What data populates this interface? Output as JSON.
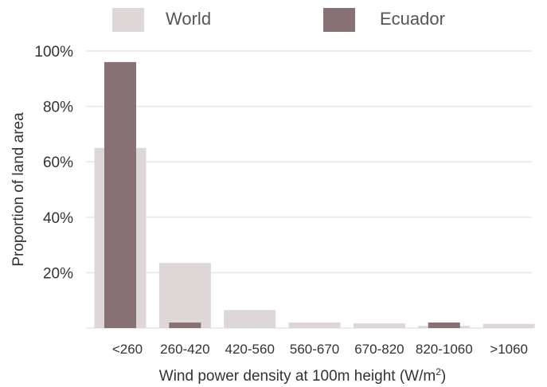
{
  "chart_data": {
    "type": "bar",
    "xlabel": "Wind power density at 100m height (W/m",
    "xlabel_sup": "2",
    "xlabel_end": ")",
    "ylabel": "Proportion of land area",
    "ylim": [
      0,
      100
    ],
    "yticks": [
      "",
      "20%",
      "40%",
      "60%",
      "80%",
      "100%"
    ],
    "grid": true,
    "legend": "top",
    "categories": [
      "<260",
      "260-420",
      "420-560",
      "560-670",
      "670-820",
      "820-1060",
      ">1060"
    ],
    "series": [
      {
        "name": "World",
        "color": "#ded7d7",
        "values": [
          65,
          23.5,
          6.5,
          2,
          1.7,
          0.8,
          1.5
        ]
      },
      {
        "name": "Ecuador",
        "color": "#877174",
        "values": [
          96,
          2,
          0,
          0,
          0,
          2,
          0
        ]
      }
    ]
  }
}
